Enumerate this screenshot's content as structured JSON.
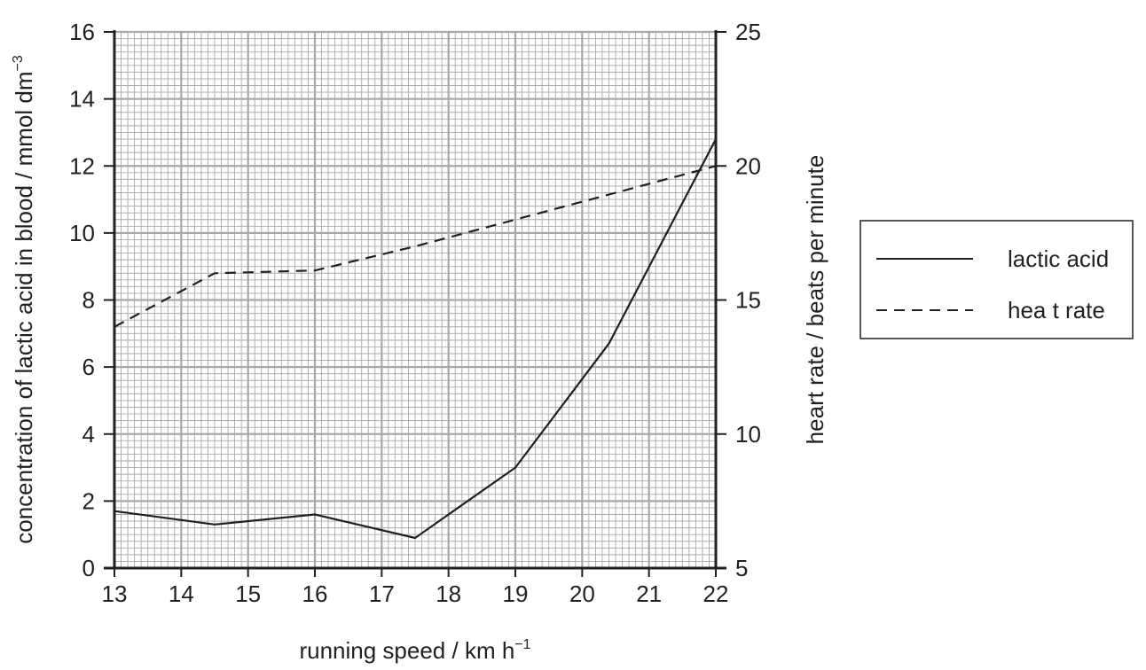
{
  "chart_data": {
    "type": "line",
    "xlabel": "running speed / km h",
    "xlabel_sup": "−1",
    "ylabel": "concentration of lactic acid in blood / mmol dm",
    "ylabel_sup": "−3",
    "y2label": "heart rate / beats per minute",
    "xlim": [
      13,
      22
    ],
    "ylim": [
      0,
      16
    ],
    "y2lim": [
      5,
      25
    ],
    "x_ticks": [
      13,
      14,
      15,
      16,
      17,
      18,
      19,
      20,
      21,
      22
    ],
    "y_ticks": [
      0,
      2,
      4,
      6,
      8,
      10,
      12,
      14,
      16
    ],
    "y2_ticks": [
      5,
      10,
      15,
      20,
      25
    ],
    "grid": true,
    "legend_position": "right",
    "series": [
      {
        "name": "lactic acid",
        "axis": "left",
        "style": "solid",
        "x": [
          13,
          14.5,
          16,
          17.5,
          19,
          20.4,
          22
        ],
        "y": [
          1.7,
          1.3,
          1.6,
          0.9,
          3.0,
          6.7,
          12.8
        ]
      },
      {
        "name": "hea t rate",
        "axis": "right",
        "style": "dashed",
        "x": [
          13,
          14.5,
          16,
          17.5,
          19,
          20.5,
          22
        ],
        "y": [
          14.0,
          16.0,
          16.1,
          17.0,
          18.0,
          19.0,
          20.0
        ]
      }
    ]
  }
}
